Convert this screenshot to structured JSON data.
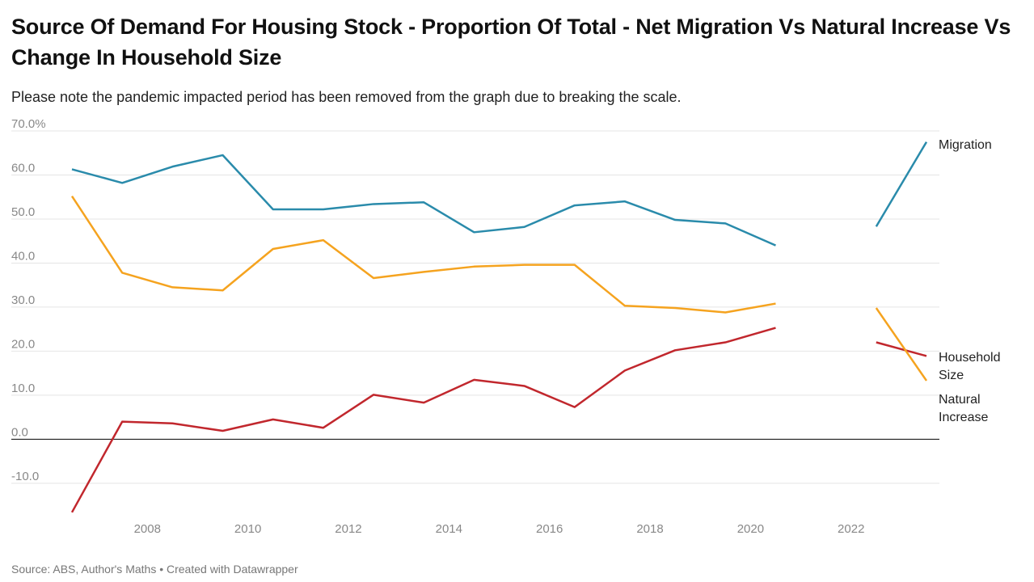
{
  "chart_data": {
    "type": "line",
    "title": "Source Of Demand For Housing Stock - Proportion Of Total - Net Migration Vs Natural Increase Vs Change In Household Size",
    "subtitle": "Please note the pandemic impacted period has been removed from the graph due to breaking the scale.",
    "source": "Source: ABS, Author's Maths • Created with Datawrapper",
    "x": [
      2006.5,
      2007.5,
      2008.5,
      2009.5,
      2010.5,
      2011.5,
      2012.5,
      2013.5,
      2014.5,
      2015.5,
      2016.5,
      2017.5,
      2018.5,
      2019.5,
      2020.5,
      2021.5,
      2022.5,
      2023.5
    ],
    "series": [
      {
        "name": "Migration",
        "color": "#2a8bab",
        "values": [
          61.3,
          58.2,
          61.9,
          64.5,
          52.2,
          52.2,
          53.4,
          53.8,
          47.0,
          48.2,
          53.1,
          54.0,
          49.8,
          49.0,
          44.0,
          null,
          48.3,
          67.5
        ]
      },
      {
        "name": "Household Size",
        "color": "#c1272d",
        "values": [
          -16.6,
          4.0,
          3.6,
          1.9,
          4.5,
          2.6,
          10.1,
          8.3,
          13.5,
          12.1,
          7.3,
          15.6,
          20.2,
          22.0,
          25.3,
          null,
          22.0,
          18.9
        ]
      },
      {
        "name": "Natural Increase",
        "color": "#f5a31f",
        "values": [
          55.2,
          37.8,
          34.5,
          33.8,
          43.2,
          45.2,
          36.6,
          38.0,
          39.2,
          39.6,
          39.6,
          30.3,
          29.8,
          28.8,
          30.8,
          null,
          29.8,
          13.3
        ]
      }
    ],
    "xlim": [
      2006.5,
      2023.5
    ],
    "xticks": [
      2008,
      2010,
      2012,
      2014,
      2016,
      2018,
      2020,
      2022
    ],
    "ylim": [
      -17,
      70
    ],
    "yticks": [
      {
        "value": -10,
        "label": "-10.0"
      },
      {
        "value": 0,
        "label": "0.0"
      },
      {
        "value": 10,
        "label": "10.0"
      },
      {
        "value": 20,
        "label": "20.0"
      },
      {
        "value": 30,
        "label": "30.0"
      },
      {
        "value": 40,
        "label": "40.0"
      },
      {
        "value": 50,
        "label": "50.0"
      },
      {
        "value": 60,
        "label": "60.0"
      },
      {
        "value": 70,
        "label": "70.0%"
      }
    ],
    "grid": true
  }
}
